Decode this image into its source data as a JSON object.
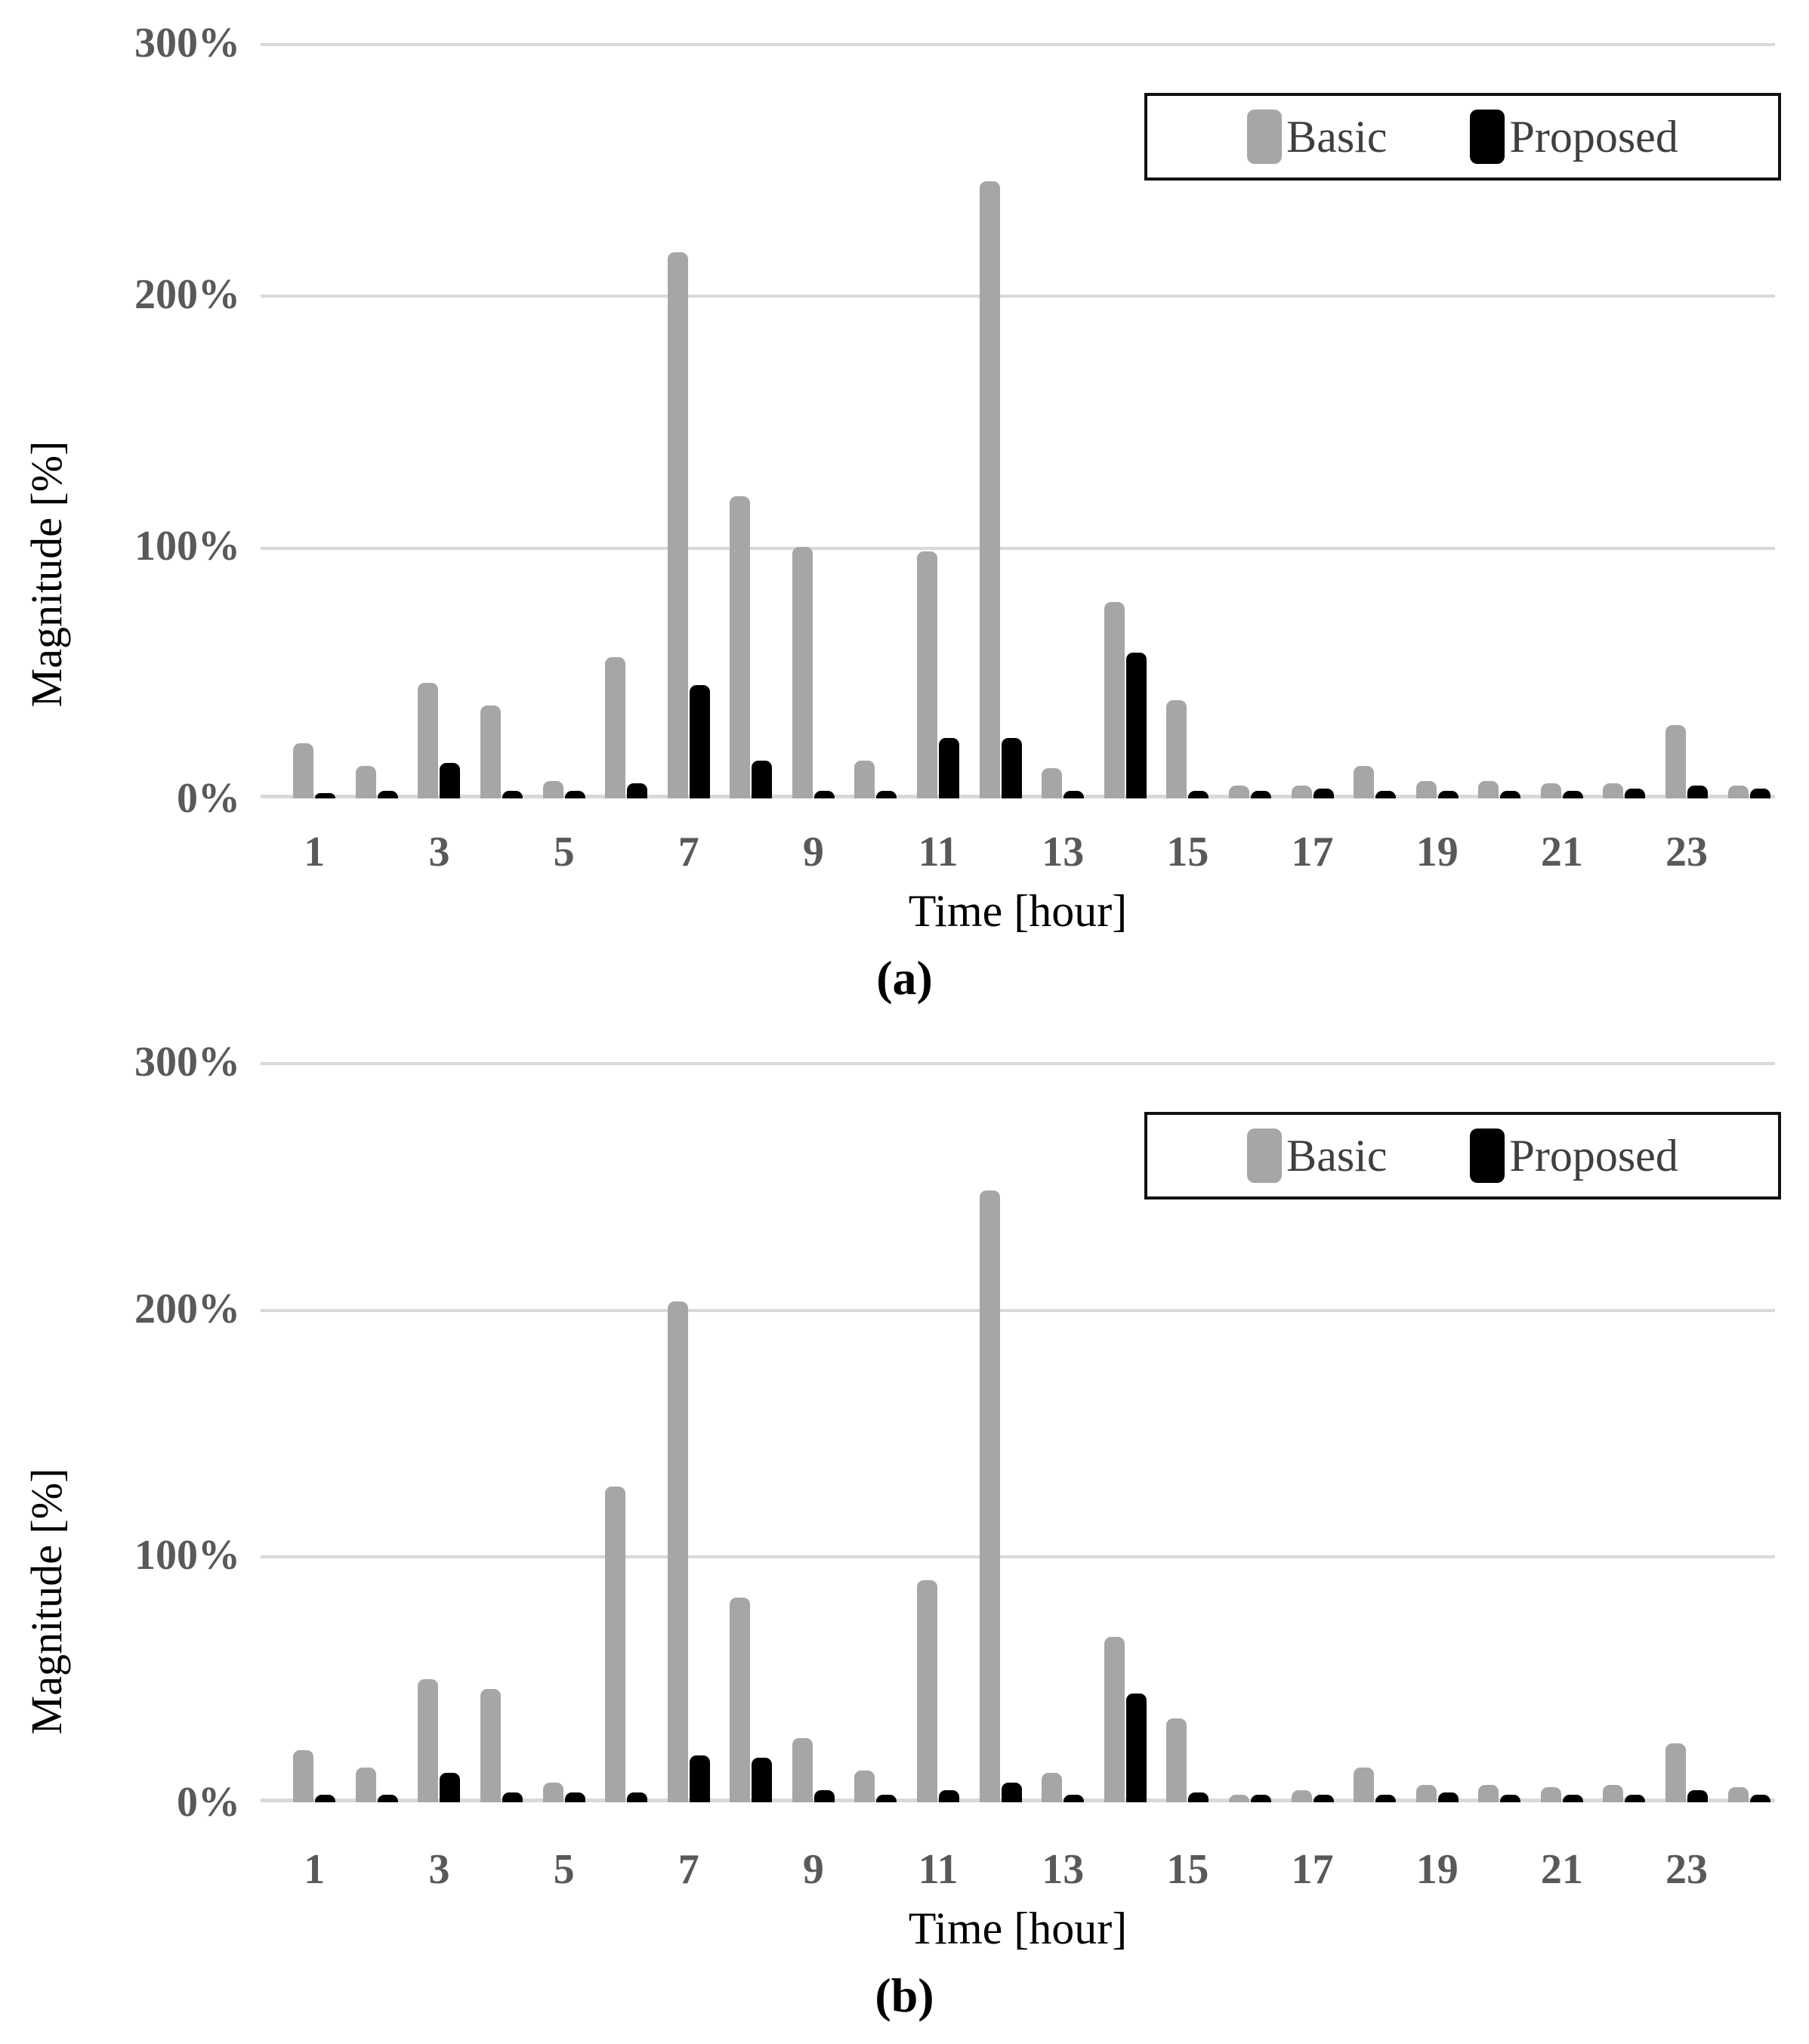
{
  "figure": {
    "background": "#ffffff",
    "colors": {
      "basic_bar": "#a6a6a6",
      "proposed_bar": "#000000",
      "gridline": "#d9d9d9",
      "tick_text": "#595959",
      "axis_text": "#000000"
    },
    "panels": [
      {
        "id": "a",
        "caption": "(a)",
        "y_axis_title": "Magnitude [%]",
        "x_axis_title": "Time [hour]",
        "y_tick_labels": [
          "300%",
          "200%",
          "100%",
          "0%"
        ],
        "legend": [
          {
            "label": "Basic",
            "color": "#a6a6a6"
          },
          {
            "label": "Proposed",
            "color": "#000000"
          }
        ]
      },
      {
        "id": "b",
        "caption": "(b)",
        "y_axis_title": "Magnitude [%]",
        "x_axis_title": "Time [hour]",
        "y_tick_labels": [
          "300%",
          "200%",
          "100%",
          "0%"
        ],
        "legend": [
          {
            "label": "Basic",
            "color": "#a6a6a6"
          },
          {
            "label": "Proposed",
            "color": "#000000"
          }
        ]
      }
    ]
  },
  "chart_data": [
    {
      "type": "bar",
      "panel": "a",
      "title": "",
      "xlabel": "Time [hour]",
      "ylabel": "Magnitude [%]",
      "ylim": [
        0,
        300
      ],
      "y_gridlines_percent": [
        0,
        100,
        200,
        300
      ],
      "x_tick_labels_shown": [
        "1",
        "3",
        "5",
        "7",
        "9",
        "11",
        "13",
        "15",
        "17",
        "19",
        "21",
        "23"
      ],
      "categories": [
        1,
        2,
        3,
        4,
        5,
        6,
        7,
        8,
        9,
        10,
        11,
        12,
        13,
        14,
        15,
        16,
        17,
        18,
        19,
        20,
        21,
        22,
        23,
        24
      ],
      "series": [
        {
          "name": "Basic",
          "color": "#a6a6a6",
          "values": [
            22,
            13,
            46,
            37,
            7,
            56,
            217,
            120,
            100,
            15,
            98,
            245,
            12,
            78,
            39,
            5,
            5,
            13,
            7,
            7,
            6,
            6,
            29,
            5
          ]
        },
        {
          "name": "Proposed",
          "color": "#000000",
          "values": [
            2,
            3,
            14,
            3,
            3,
            6,
            45,
            15,
            3,
            3,
            24,
            24,
            3,
            58,
            3,
            3,
            4,
            3,
            3,
            3,
            3,
            4,
            5,
            4
          ]
        }
      ],
      "legend_position": "top-right",
      "grid": true
    },
    {
      "type": "bar",
      "panel": "b",
      "title": "",
      "xlabel": "Time [hour]",
      "ylabel": "Magnitude [%]",
      "ylim": [
        0,
        300
      ],
      "y_gridlines_percent": [
        0,
        100,
        200,
        300
      ],
      "x_tick_labels_shown": [
        "1",
        "3",
        "5",
        "7",
        "9",
        "11",
        "13",
        "15",
        "17",
        "19",
        "21",
        "23"
      ],
      "categories": [
        1,
        2,
        3,
        4,
        5,
        6,
        7,
        8,
        9,
        10,
        11,
        12,
        13,
        14,
        15,
        16,
        17,
        18,
        19,
        20,
        21,
        22,
        23,
        24
      ],
      "series": [
        {
          "name": "Basic",
          "color": "#a6a6a6",
          "values": [
            21,
            14,
            50,
            46,
            8,
            128,
            203,
            83,
            26,
            13,
            90,
            248,
            12,
            67,
            34,
            3,
            5,
            14,
            7,
            7,
            6,
            7,
            24,
            6
          ]
        },
        {
          "name": "Proposed",
          "color": "#000000",
          "values": [
            3,
            3,
            12,
            4,
            4,
            4,
            19,
            18,
            5,
            3,
            5,
            8,
            3,
            44,
            4,
            3,
            3,
            3,
            4,
            3,
            3,
            3,
            5,
            3
          ]
        }
      ],
      "legend_position": "top-right",
      "grid": true
    }
  ]
}
